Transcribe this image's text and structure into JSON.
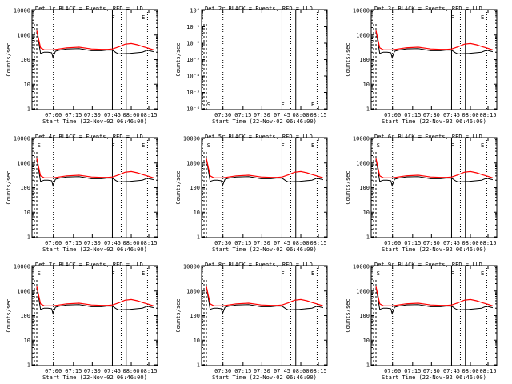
{
  "chart_data": [
    {
      "type": "line",
      "title": "Det 1r BLACK = Events, RED = LLD",
      "xlabel": "Start Time (22-Nov-02 06:46:00)",
      "ylabel": "Counts/sec",
      "yscale": "log",
      "ylim": [
        1,
        10000
      ],
      "y_ticks": [
        "1",
        "10",
        "100",
        "1000",
        "10000"
      ],
      "xlim_minutes_from_start": [
        0,
        96
      ],
      "x_ticks": [
        "07:00",
        "07:15",
        "07:30",
        "07:45",
        "08:00",
        "08:15"
      ],
      "markers": [
        {
          "label": "F"
        },
        {
          "label": "E"
        }
      ],
      "series": [
        {
          "color": "#000000",
          "x": [
            0,
            3,
            6,
            9,
            12,
            13,
            15,
            18,
            24,
            34,
            44,
            52,
            57,
            61,
            64,
            66,
            75,
            85,
            89,
            94
          ],
          "y": [
            1500,
            180,
            200,
            200,
            190,
            120,
            220,
            240,
            270,
            280,
            230,
            230,
            245,
            240,
            190,
            170,
            180,
            200,
            240,
            210
          ]
        },
        {
          "color": "#ff0000",
          "x": [
            0,
            3,
            6,
            9,
            13,
            18,
            24,
            34,
            44,
            52,
            57,
            61,
            66,
            71,
            76,
            81,
            86,
            90,
            94
          ],
          "y": [
            1500,
            300,
            250,
            250,
            250,
            270,
            300,
            320,
            270,
            260,
            260,
            270,
            330,
            420,
            450,
            400,
            330,
            290,
            250
          ]
        }
      ]
    },
    {
      "type": "line",
      "title": "Det 2r BLACK = Events, RED = LLD",
      "xlabel": "Start Time (22-Nov-02 06:46:00)",
      "ylabel": "Counts/sec",
      "yscale": "log",
      "y_ticks": [
        "10⁰",
        "10⁻¹",
        "10⁻²",
        "10⁻³",
        "10⁻⁴",
        "10⁻⁵",
        "10⁻⁶"
      ],
      "x_ticks": [
        "07:30",
        "07:15",
        "07:30",
        "07:45",
        "08:00",
        "08:15"
      ],
      "markers": [
        {
          "label": "S"
        },
        {
          "label": "F"
        },
        {
          "label": "E"
        }
      ],
      "series": []
    },
    {
      "type": "line",
      "title": "Det 3r BLACK = Events, RED = LLD",
      "xlabel": "Start Time (22-Nov-02 06:46:00)",
      "ylabel": "Counts/sec",
      "yscale": "log",
      "ylim": [
        1,
        10000
      ],
      "y_ticks": [
        "1",
        "10",
        "100",
        "1000",
        "10000"
      ],
      "x_ticks": [
        "07:00",
        "07:15",
        "07:30",
        "07:45",
        "08:00",
        "08:15"
      ],
      "markers": [
        {
          "label": "F"
        },
        {
          "label": "E"
        }
      ],
      "series": [
        {
          "color": "#000000",
          "x": [
            0,
            3,
            6,
            9,
            12,
            13,
            15,
            18,
            24,
            34,
            44,
            52,
            57,
            61,
            64,
            66,
            75,
            85,
            89,
            94
          ],
          "y": [
            1500,
            180,
            200,
            200,
            190,
            120,
            220,
            240,
            270,
            280,
            230,
            230,
            245,
            240,
            190,
            170,
            180,
            200,
            240,
            210
          ]
        },
        {
          "color": "#ff0000",
          "x": [
            0,
            3,
            6,
            9,
            13,
            18,
            24,
            34,
            44,
            52,
            57,
            61,
            66,
            71,
            76,
            81,
            86,
            90,
            94
          ],
          "y": [
            1500,
            300,
            250,
            250,
            250,
            270,
            300,
            320,
            270,
            260,
            260,
            270,
            330,
            420,
            450,
            400,
            330,
            290,
            250
          ]
        }
      ]
    },
    {
      "type": "line",
      "title": "Det 4r BLACK = Events, RED = LLD",
      "xlabel": "Start Time (22-Nov-02 06:46:00)",
      "ylabel": "Counts/sec",
      "yscale": "log",
      "ylim": [
        1,
        10000
      ],
      "y_ticks": [
        "1",
        "10",
        "100",
        "1000",
        "10000"
      ],
      "x_ticks": [
        "07:00",
        "07:15",
        "07:30",
        "07:45",
        "08:00",
        "08:15"
      ],
      "markers": [
        {
          "label": "S"
        },
        {
          "label": "F"
        },
        {
          "label": "E"
        }
      ],
      "series": [
        {
          "color": "#000000",
          "x": [
            0,
            3,
            6,
            9,
            12,
            13,
            15,
            18,
            24,
            34,
            44,
            52,
            57,
            61,
            64,
            66,
            75,
            85,
            89,
            94
          ],
          "y": [
            1500,
            180,
            200,
            200,
            190,
            120,
            220,
            240,
            270,
            280,
            230,
            230,
            245,
            240,
            190,
            170,
            180,
            200,
            240,
            210
          ]
        },
        {
          "color": "#ff0000",
          "x": [
            0,
            3,
            6,
            9,
            13,
            18,
            24,
            34,
            44,
            52,
            57,
            61,
            66,
            71,
            76,
            81,
            86,
            90,
            94
          ],
          "y": [
            1500,
            300,
            250,
            250,
            250,
            270,
            300,
            320,
            270,
            260,
            260,
            270,
            330,
            420,
            450,
            400,
            330,
            290,
            250
          ]
        }
      ]
    },
    {
      "type": "line",
      "title": "Det 5r BLACK = Events, RED = LLD",
      "xlabel": "Start Time (22-Nov-02 06:46:00)",
      "ylabel": "Counts/sec",
      "yscale": "log",
      "ylim": [
        1,
        10000
      ],
      "y_ticks": [
        "1",
        "10",
        "100",
        "1000",
        "10000"
      ],
      "x_ticks": [
        "07:30",
        "07:15",
        "07:30",
        "07:45",
        "08:00",
        "08:15"
      ],
      "markers": [
        {
          "label": "S"
        },
        {
          "label": "F"
        },
        {
          "label": "E"
        }
      ],
      "series": [
        {
          "color": "#000000",
          "x": [
            0,
            3,
            6,
            9,
            12,
            13,
            15,
            18,
            24,
            34,
            44,
            52,
            57,
            61,
            64,
            66,
            75,
            85,
            89,
            94
          ],
          "y": [
            1500,
            180,
            200,
            200,
            190,
            120,
            220,
            240,
            270,
            280,
            230,
            230,
            245,
            240,
            190,
            170,
            180,
            200,
            240,
            210
          ]
        },
        {
          "color": "#ff0000",
          "x": [
            0,
            3,
            6,
            9,
            13,
            18,
            24,
            34,
            44,
            52,
            57,
            61,
            66,
            71,
            76,
            81,
            86,
            90,
            94
          ],
          "y": [
            1500,
            300,
            250,
            250,
            250,
            270,
            300,
            320,
            270,
            260,
            260,
            270,
            330,
            420,
            450,
            400,
            330,
            290,
            250
          ]
        }
      ]
    },
    {
      "type": "line",
      "title": "Det 6r BLACK = Events, RED = LLD",
      "xlabel": "Start Time (22-Nov-02 06:46:00)",
      "ylabel": "Counts/sec",
      "yscale": "log",
      "ylim": [
        1,
        10000
      ],
      "y_ticks": [
        "1",
        "10",
        "100",
        "1000",
        "10000"
      ],
      "x_ticks": [
        "07:00",
        "07:15",
        "07:30",
        "07:45",
        "08:00",
        "08:15"
      ],
      "markers": [
        {
          "label": "S"
        },
        {
          "label": "F"
        },
        {
          "label": "E"
        }
      ],
      "series": [
        {
          "color": "#000000",
          "x": [
            0,
            3,
            6,
            9,
            12,
            13,
            15,
            18,
            24,
            34,
            44,
            52,
            57,
            61,
            64,
            66,
            75,
            85,
            89,
            94
          ],
          "y": [
            1500,
            180,
            200,
            200,
            190,
            120,
            220,
            240,
            270,
            280,
            230,
            230,
            245,
            240,
            190,
            170,
            180,
            200,
            240,
            210
          ]
        },
        {
          "color": "#ff0000",
          "x": [
            0,
            3,
            6,
            9,
            13,
            18,
            24,
            34,
            44,
            52,
            57,
            61,
            66,
            71,
            76,
            81,
            86,
            90,
            94
          ],
          "y": [
            1500,
            300,
            250,
            250,
            250,
            270,
            300,
            320,
            270,
            260,
            260,
            270,
            330,
            420,
            450,
            400,
            330,
            290,
            250
          ]
        }
      ]
    },
    {
      "type": "line",
      "title": "Det 7r BLACK = Events, RED = LLD",
      "xlabel": "Start Time (22-Nov-02 06:46:00)",
      "ylabel": "Counts/sec",
      "yscale": "log",
      "ylim": [
        1,
        10000
      ],
      "y_ticks": [
        "1",
        "10",
        "100",
        "1000",
        "10000"
      ],
      "x_ticks": [
        "07:00",
        "07:15",
        "07:30",
        "07:45",
        "08:00",
        "08:15"
      ],
      "markers": [
        {
          "label": "S"
        },
        {
          "label": "F"
        },
        {
          "label": "E"
        }
      ],
      "series": [
        {
          "color": "#000000",
          "x": [
            0,
            3,
            6,
            9,
            12,
            13,
            15,
            18,
            24,
            34,
            44,
            52,
            57,
            61,
            64,
            66,
            75,
            85,
            89,
            94
          ],
          "y": [
            1500,
            180,
            200,
            200,
            190,
            120,
            220,
            240,
            270,
            280,
            230,
            230,
            245,
            240,
            190,
            170,
            180,
            200,
            240,
            210
          ]
        },
        {
          "color": "#ff0000",
          "x": [
            0,
            3,
            6,
            9,
            13,
            18,
            24,
            34,
            44,
            52,
            57,
            61,
            66,
            71,
            76,
            81,
            86,
            90,
            94
          ],
          "y": [
            1500,
            300,
            250,
            250,
            250,
            270,
            300,
            320,
            270,
            260,
            260,
            270,
            330,
            420,
            450,
            400,
            330,
            290,
            250
          ]
        }
      ]
    },
    {
      "type": "line",
      "title": "Det 8r BLACK = Events, RED = LLD",
      "xlabel": "Start Time (22-Nov-02 06:46:00)",
      "ylabel": "Counts/sec",
      "yscale": "log",
      "ylim": [
        1,
        10000
      ],
      "y_ticks": [
        "1",
        "10",
        "100",
        "1000",
        "10000"
      ],
      "x_ticks": [
        "07:30",
        "07:15",
        "07:30",
        "07:45",
        "08:00",
        "08:15"
      ],
      "markers": [
        {
          "label": "F"
        },
        {
          "label": "E"
        }
      ],
      "series": [
        {
          "color": "#000000",
          "x": [
            0,
            3,
            6,
            9,
            12,
            13,
            15,
            18,
            24,
            34,
            44,
            52,
            57,
            61,
            64,
            66,
            75,
            85,
            89,
            94
          ],
          "y": [
            1500,
            180,
            200,
            200,
            190,
            120,
            220,
            240,
            270,
            280,
            230,
            230,
            245,
            240,
            190,
            170,
            180,
            200,
            240,
            210
          ]
        },
        {
          "color": "#ff0000",
          "x": [
            0,
            3,
            6,
            9,
            13,
            18,
            24,
            34,
            44,
            52,
            57,
            61,
            66,
            71,
            76,
            81,
            86,
            90,
            94
          ],
          "y": [
            1500,
            300,
            250,
            250,
            250,
            270,
            300,
            320,
            270,
            260,
            260,
            270,
            330,
            420,
            450,
            400,
            330,
            290,
            250
          ]
        }
      ]
    },
    {
      "type": "line",
      "title": "Det 9r BLACK = Events, RED = LLD",
      "xlabel": "Start Time (22-Nov-02 06:46:00)",
      "ylabel": "Counts/sec",
      "yscale": "log",
      "ylim": [
        1,
        10000
      ],
      "y_ticks": [
        "1",
        "10",
        "100",
        "1000",
        "10000"
      ],
      "x_ticks": [
        "07:00",
        "07:15",
        "07:30",
        "07:45",
        "08:00",
        "08:15"
      ],
      "markers": [
        {
          "label": "S"
        },
        {
          "label": "F"
        },
        {
          "label": "E"
        }
      ],
      "series": [
        {
          "color": "#000000",
          "x": [
            0,
            3,
            6,
            9,
            12,
            13,
            15,
            18,
            24,
            34,
            44,
            52,
            57,
            61,
            64,
            66,
            75,
            85,
            89,
            94
          ],
          "y": [
            1500,
            180,
            200,
            200,
            190,
            120,
            220,
            240,
            270,
            280,
            230,
            230,
            245,
            240,
            190,
            170,
            180,
            200,
            240,
            210
          ]
        },
        {
          "color": "#ff0000",
          "x": [
            0,
            3,
            6,
            9,
            13,
            18,
            24,
            34,
            44,
            52,
            57,
            61,
            66,
            71,
            76,
            81,
            86,
            90,
            94
          ],
          "y": [
            1500,
            300,
            250,
            250,
            250,
            270,
            300,
            320,
            270,
            260,
            260,
            270,
            330,
            420,
            450,
            400,
            330,
            290,
            250
          ]
        }
      ]
    }
  ]
}
